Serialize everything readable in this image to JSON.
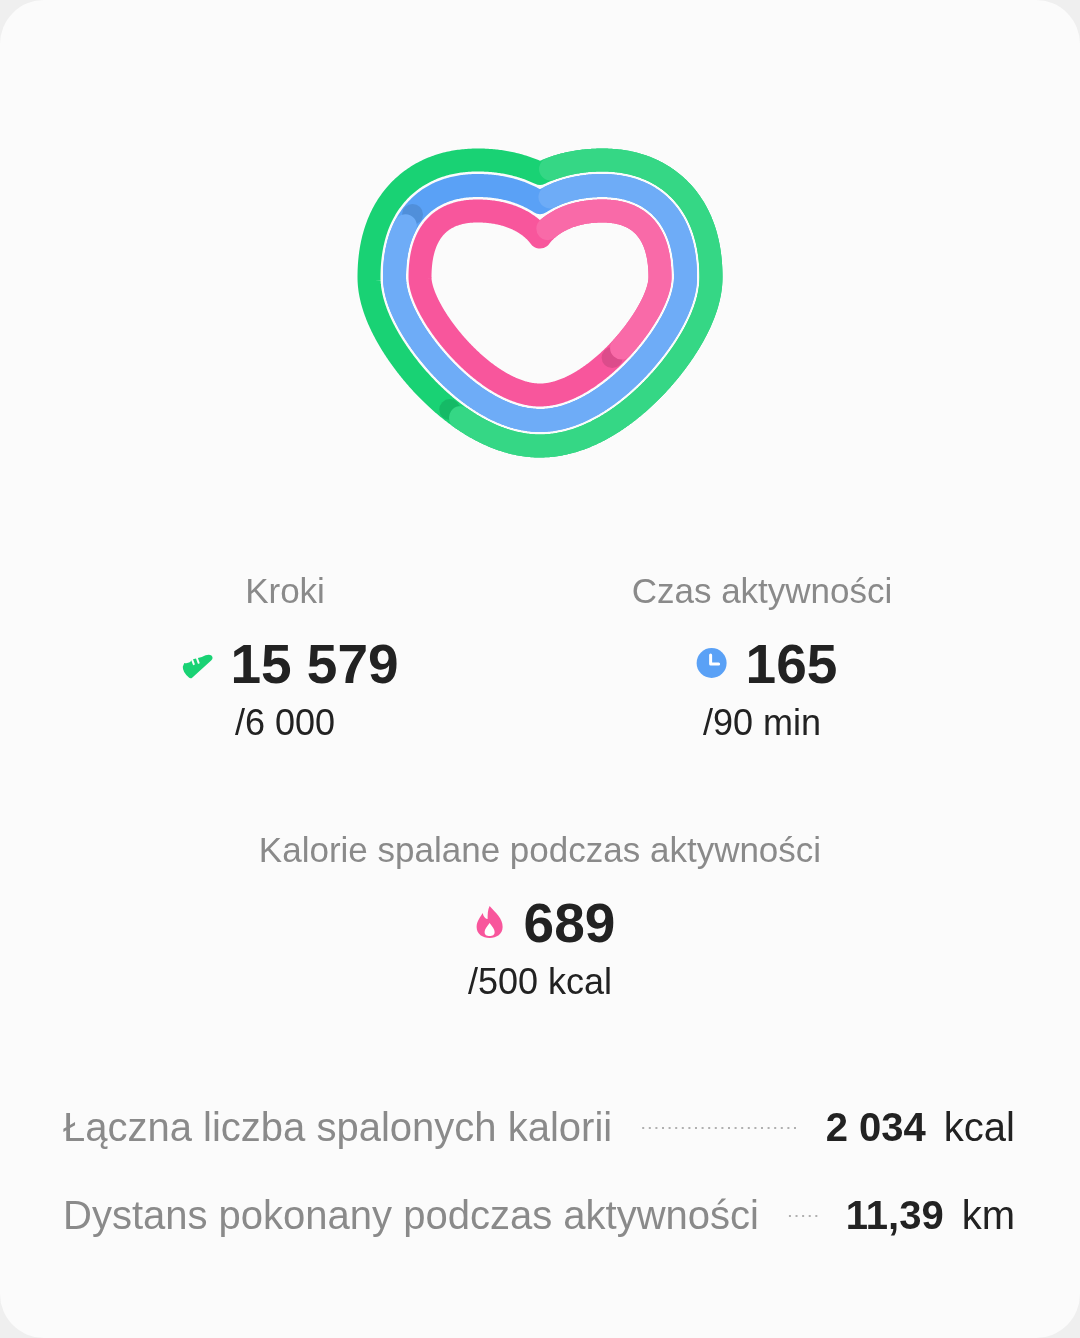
{
  "chart_data": {
    "type": "other",
    "categories": [
      "Kroki",
      "Czas aktywności",
      "Kalorie spalane podczas aktywności"
    ],
    "series": [
      {
        "values": [
          15579,
          165,
          689
        ],
        "value_labels": [
          "15 579",
          "165",
          "689"
        ],
        "colors": [
          "#19d274",
          "#5aa1f6",
          "#f8569c"
        ]
      },
      {
        "values": [
          6000,
          90,
          500
        ],
        "value_labels": [
          "/6 000",
          "/90 min",
          "/500 kcal"
        ]
      }
    ],
    "annotations": [
      "Łączna liczba spalonych kalorii",
      "2 034",
      "kcal",
      "Dystans pokonany podczas aktywności",
      "11,39",
      "km"
    ]
  }
}
